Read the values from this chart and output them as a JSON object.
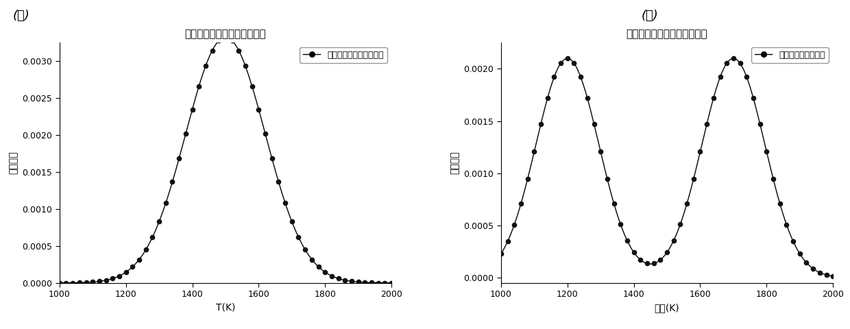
{
  "plot_a": {
    "title": "给定的单峰温度概率密度分布",
    "xlabel": "T(K)",
    "ylabel": "概率密度",
    "legend_label": "给定的温度概率密度分布",
    "xlim": [
      1000,
      2000
    ],
    "ylim": [
      0,
      0.00325
    ],
    "yticks": [
      0.0,
      0.0005,
      0.001,
      0.0015,
      0.002,
      0.0025,
      0.003
    ],
    "xticks": [
      1000,
      1200,
      1400,
      1600,
      1800,
      2000
    ],
    "peak_mean": 1500,
    "peak_std": 120,
    "peak_amp": 1.0
  },
  "plot_b": {
    "title": "给定的双峰温度概率密度分布",
    "xlabel": "温度(K)",
    "ylabel": "概率密度",
    "legend_label": "给定的概率密度分布",
    "xlim": [
      1000,
      2000
    ],
    "ylim": [
      -5e-05,
      0.00225
    ],
    "yticks": [
      0.0,
      0.0005,
      0.001,
      0.0015,
      0.002
    ],
    "xticks": [
      1000,
      1200,
      1400,
      1600,
      1800,
      2000
    ],
    "peak1_mean": 1200,
    "peak1_std": 95,
    "peak1_amp": 0.5,
    "peak2_mean": 1700,
    "peak2_std": 95,
    "peak2_amp": 0.5
  },
  "panel_a_label": "(ａ)",
  "panel_b_label": "(ｂ)",
  "line_color": "#000000",
  "marker_color": "#111111",
  "marker_size": 5.5,
  "line_width": 1.0,
  "title_fontsize": 11,
  "label_fontsize": 10,
  "tick_fontsize": 9,
  "legend_fontsize": 9,
  "background_color": "#ffffff"
}
